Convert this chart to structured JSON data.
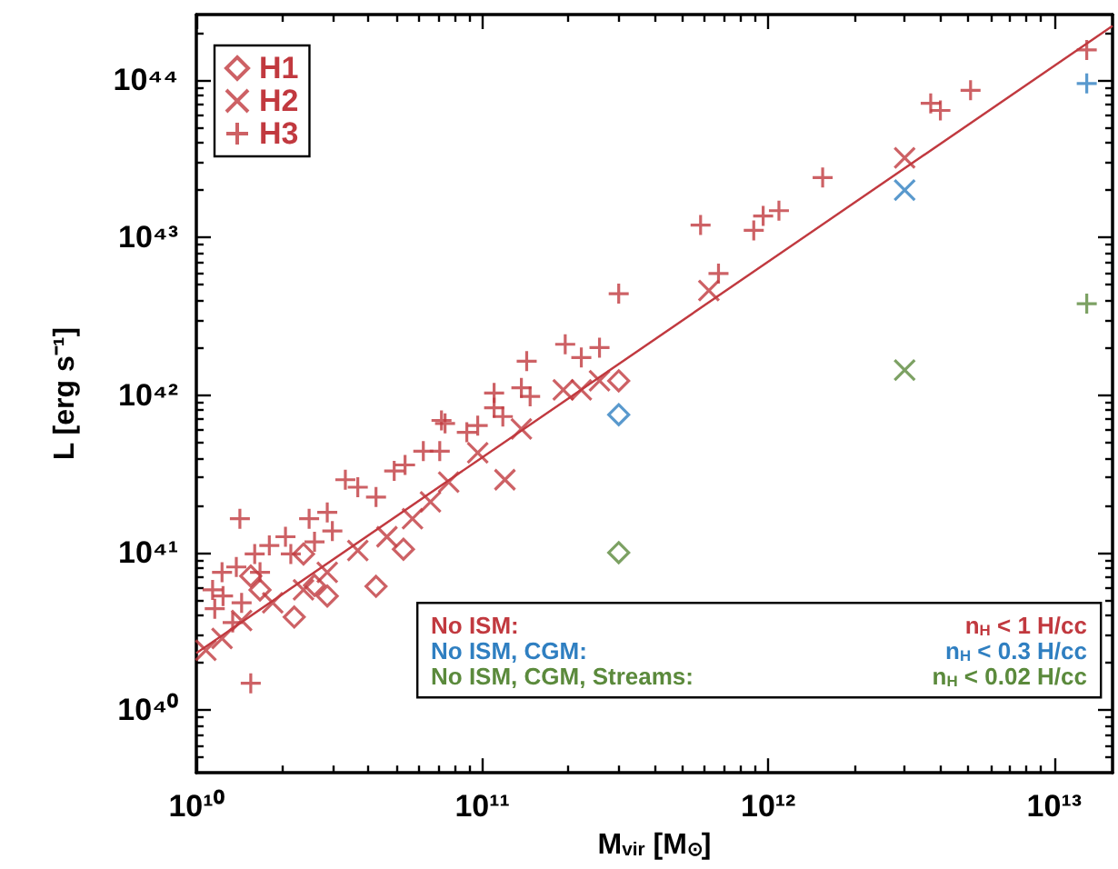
{
  "chart_data": {
    "type": "scatter",
    "xlabel": "M$_{vir}$ [M$_{⊙}$]",
    "ylabel": "L [erg s⁻¹]",
    "log": "xy",
    "grid": false,
    "legend": "top left",
    "xlim": [
      10000000000.0,
      16000000000000.0
    ],
    "ylim": [
      4e+39,
      2.6e+44
    ],
    "xticks": [
      {
        "value": 10000000000.0,
        "label": "10¹⁰"
      },
      {
        "value": 20000000000.0,
        "label": null
      },
      {
        "value": 30000000000.0,
        "label": null
      },
      {
        "value": 40000000000.0,
        "label": null
      },
      {
        "value": 50000000000.0,
        "label": null
      },
      {
        "value": 60000000000.0,
        "label": null
      },
      {
        "value": 70000000000.0,
        "label": null
      },
      {
        "value": 80000000000.0,
        "label": null
      },
      {
        "value": 90000000000.0,
        "label": null
      },
      {
        "value": 100000000000.0,
        "label": "10¹¹"
      },
      {
        "value": 200000000000.0,
        "label": null
      },
      {
        "value": 300000000000.0,
        "label": null
      },
      {
        "value": 400000000000.0,
        "label": null
      },
      {
        "value": 500000000000.0,
        "label": null
      },
      {
        "value": 600000000000.0,
        "label": null
      },
      {
        "value": 700000000000.0,
        "label": null
      },
      {
        "value": 800000000000.0,
        "label": null
      },
      {
        "value": 900000000000.0,
        "label": null
      },
      {
        "value": 1000000000000.0,
        "label": "10¹²"
      },
      {
        "value": 2000000000000.0,
        "label": null
      },
      {
        "value": 3000000000000.0,
        "label": null
      },
      {
        "value": 4000000000000.0,
        "label": null
      },
      {
        "value": 5000000000000.0,
        "label": null
      },
      {
        "value": 6000000000000.0,
        "label": null
      },
      {
        "value": 7000000000000.0,
        "label": null
      },
      {
        "value": 8000000000000.0,
        "label": null
      },
      {
        "value": 9000000000000.0,
        "label": null
      },
      {
        "value": 10000000000000.0,
        "label": "10¹³"
      }
    ],
    "yticks": [
      {
        "value": 5e+39,
        "label": null
      },
      {
        "value": 6e+39,
        "label": null
      },
      {
        "value": 7e+39,
        "label": null
      },
      {
        "value": 8e+39,
        "label": null
      },
      {
        "value": 9e+39,
        "label": null
      },
      {
        "value": 1e+40,
        "label": "10⁴⁰"
      },
      {
        "value": 2e+40,
        "label": null
      },
      {
        "value": 3e+40,
        "label": null
      },
      {
        "value": 4e+40,
        "label": null
      },
      {
        "value": 5e+40,
        "label": null
      },
      {
        "value": 6e+40,
        "label": null
      },
      {
        "value": 7e+40,
        "label": null
      },
      {
        "value": 8e+40,
        "label": null
      },
      {
        "value": 9e+40,
        "label": null
      },
      {
        "value": 1e+41,
        "label": "10⁴¹"
      },
      {
        "value": 2e+41,
        "label": null
      },
      {
        "value": 3e+41,
        "label": null
      },
      {
        "value": 4e+41,
        "label": null
      },
      {
        "value": 5e+41,
        "label": null
      },
      {
        "value": 6e+41,
        "label": null
      },
      {
        "value": 7e+41,
        "label": null
      },
      {
        "value": 8e+41,
        "label": null
      },
      {
        "value": 9e+41,
        "label": null
      },
      {
        "value": 1e+42,
        "label": "10⁴²"
      },
      {
        "value": 2e+42,
        "label": null
      },
      {
        "value": 3e+42,
        "label": null
      },
      {
        "value": 4e+42,
        "label": null
      },
      {
        "value": 5e+42,
        "label": null
      },
      {
        "value": 6e+42,
        "label": null
      },
      {
        "value": 7e+42,
        "label": null
      },
      {
        "value": 8e+42,
        "label": null
      },
      {
        "value": 9e+42,
        "label": null
      },
      {
        "value": 1e+43,
        "label": "10⁴³"
      },
      {
        "value": 2e+43,
        "label": null
      },
      {
        "value": 3e+43,
        "label": null
      },
      {
        "value": 4e+43,
        "label": null
      },
      {
        "value": 5e+43,
        "label": null
      },
      {
        "value": 6e+43,
        "label": null
      },
      {
        "value": 7e+43,
        "label": null
      },
      {
        "value": 8e+43,
        "label": null
      },
      {
        "value": 9e+43,
        "label": null
      },
      {
        "value": 1e+44,
        "label": "10⁴⁴"
      },
      {
        "value": 2e+44,
        "label": null
      }
    ],
    "series": [
      {
        "name": "H1",
        "color": "#c1393f",
        "marker": "diamond",
        "x": [
          53000000000.0,
          42500000000.0,
          28700000000.0,
          22000000000.0,
          25900000000.0,
          16700000000.0,
          23700000000.0,
          15500000000.0,
          300000000000.0
        ],
        "values": [
          1.05e+41,
          6.1e+40,
          5.3e+40,
          3.9e+40,
          6.2e+40,
          5.8e+40,
          9.8e+40,
          7.1e+40,
          1.23e+42
        ]
      },
      {
        "name": "H2",
        "color": "#c1393f",
        "marker": "x",
        "x": [
          120000000000.0,
          96400000000.0,
          65900000000.0,
          57000000000.0,
          46400000000.0,
          36700000000.0,
          28700000000.0,
          23700000000.0,
          18500000000.0,
          14400000000.0,
          12300000000.0,
          10800000000.0,
          137000000000.0,
          76300000000.0,
          192000000000.0,
          222000000000.0,
          257000000000.0,
          620000000000.0,
          3000000000000.0
        ],
        "values": [
          2.9e+41,
          4.3e+41,
          2.1e+41,
          1.64e+41,
          1.26e+41,
          1.03e+41,
          7.5e+40,
          5.8e+40,
          4.8e+40,
          3.7e+40,
          2.85e+40,
          2.4e+40,
          6.1e+41,
          2.8e+41,
          1.08e+42,
          1.08e+42,
          1.23e+42,
          4.6e+42,
          3.2e+43
        ]
      },
      {
        "name": "H3",
        "color": "#c1393f",
        "marker": "cross",
        "x": [
          14200000000.0,
          15500000000.0,
          110000000000.0,
          147000000000.0,
          74100000000.0,
          88300000000.0,
          71000000000.0,
          49200000000.0,
          36700000000.0,
          33200000000.0,
          28700000000.0,
          24800000000.0,
          20500000000.0,
          18000000000.0,
          16000000000.0,
          13800000000.0,
          12300000000.0,
          11400000000.0,
          12400000000.0,
          14400000000.0,
          16700000000.0,
          21400000000.0,
          25900000000.0,
          29900000000.0,
          42500000000.0,
          53700000000.0,
          62200000000.0,
          96400000000.0,
          118000000000.0,
          11600000000.0,
          13400000000.0,
          72000000000.0,
          110000000000.0,
          137000000000.0,
          143000000000.0,
          195000000000.0,
          222000000000.0,
          257000000000.0,
          300000000000.0,
          580000000000.0,
          670000000000.0,
          890000000000.0,
          960000000000.0,
          1090000000000.0,
          1550000000000.0,
          3700000000000.0,
          4000000000000.0,
          5100000000000.0,
          13000000000000.0
        ],
        "values": [
          1.64e+41,
          1.48e+40,
          8.3e+41,
          9.8e+41,
          6.6e+41,
          5.8e+41,
          4.4e+41,
          3.3e+41,
          2.6e+41,
          2.9e+41,
          1.8e+41,
          1.64e+41,
          1.26e+41,
          1.11e+41,
          9.8e+40,
          8.1e+40,
          7.5e+40,
          5.8e+40,
          5.3e+40,
          4.8e+40,
          7.5e+40,
          9.8e+40,
          1.17e+41,
          1.37e+41,
          2.25e+41,
          3.6e+41,
          4.4e+41,
          6.4e+41,
          7.3e+41,
          4.4e+40,
          3.6e+40,
          6.9e+41,
          1.03e+42,
          1.11e+42,
          1.64e+42,
          2.1e+42,
          1.73e+42,
          2e+42,
          4.4e+42,
          1.2e+43,
          5.9e+42,
          1.11e+43,
          1.37e+43,
          1.48e+43,
          2.4e+43,
          7.1e+43,
          6.4e+43,
          8.6e+43,
          1.55e+44
        ]
      },
      {
        "color": "#2f7fc1",
        "marker": "diamond",
        "x": [
          300000000000.0
        ],
        "values": [
          7.5e+41
        ]
      },
      {
        "color": "#2f7fc1",
        "marker": "x",
        "x": [
          3000000000000.0
        ],
        "values": [
          2e+43
        ]
      },
      {
        "color": "#2f7fc1",
        "marker": "cross",
        "x": [
          13000000000000.0
        ],
        "values": [
          9.5e+43
        ]
      },
      {
        "color": "#5b8a3c",
        "marker": "diamond",
        "x": [
          300000000000.0
        ],
        "values": [
          1e+41
        ]
      },
      {
        "color": "#5b8a3c",
        "marker": "x",
        "x": [
          3000000000000.0
        ],
        "values": [
          1.44e+42
        ]
      },
      {
        "color": "#5b8a3c",
        "marker": "cross",
        "x": [
          13000000000000.0
        ],
        "values": [
          3.8e+42
        ]
      },
      {
        "type": "line",
        "color": "#c1393f",
        "marker": "none",
        "x": [
          10000000000.0,
          16000000000000.0
        ],
        "values": [
          2.3e+40,
          2.2e+44
        ]
      }
    ],
    "annotations": [
      "No ISM:",
      "n$_{H}$ < 1 H/cc",
      "No ISM, CGM:",
      "n$_{H}$ < 0.3 H/cc",
      "No ISM, CGM, Streams:",
      "n$_{H}$ < 0.02 H/cc"
    ]
  }
}
